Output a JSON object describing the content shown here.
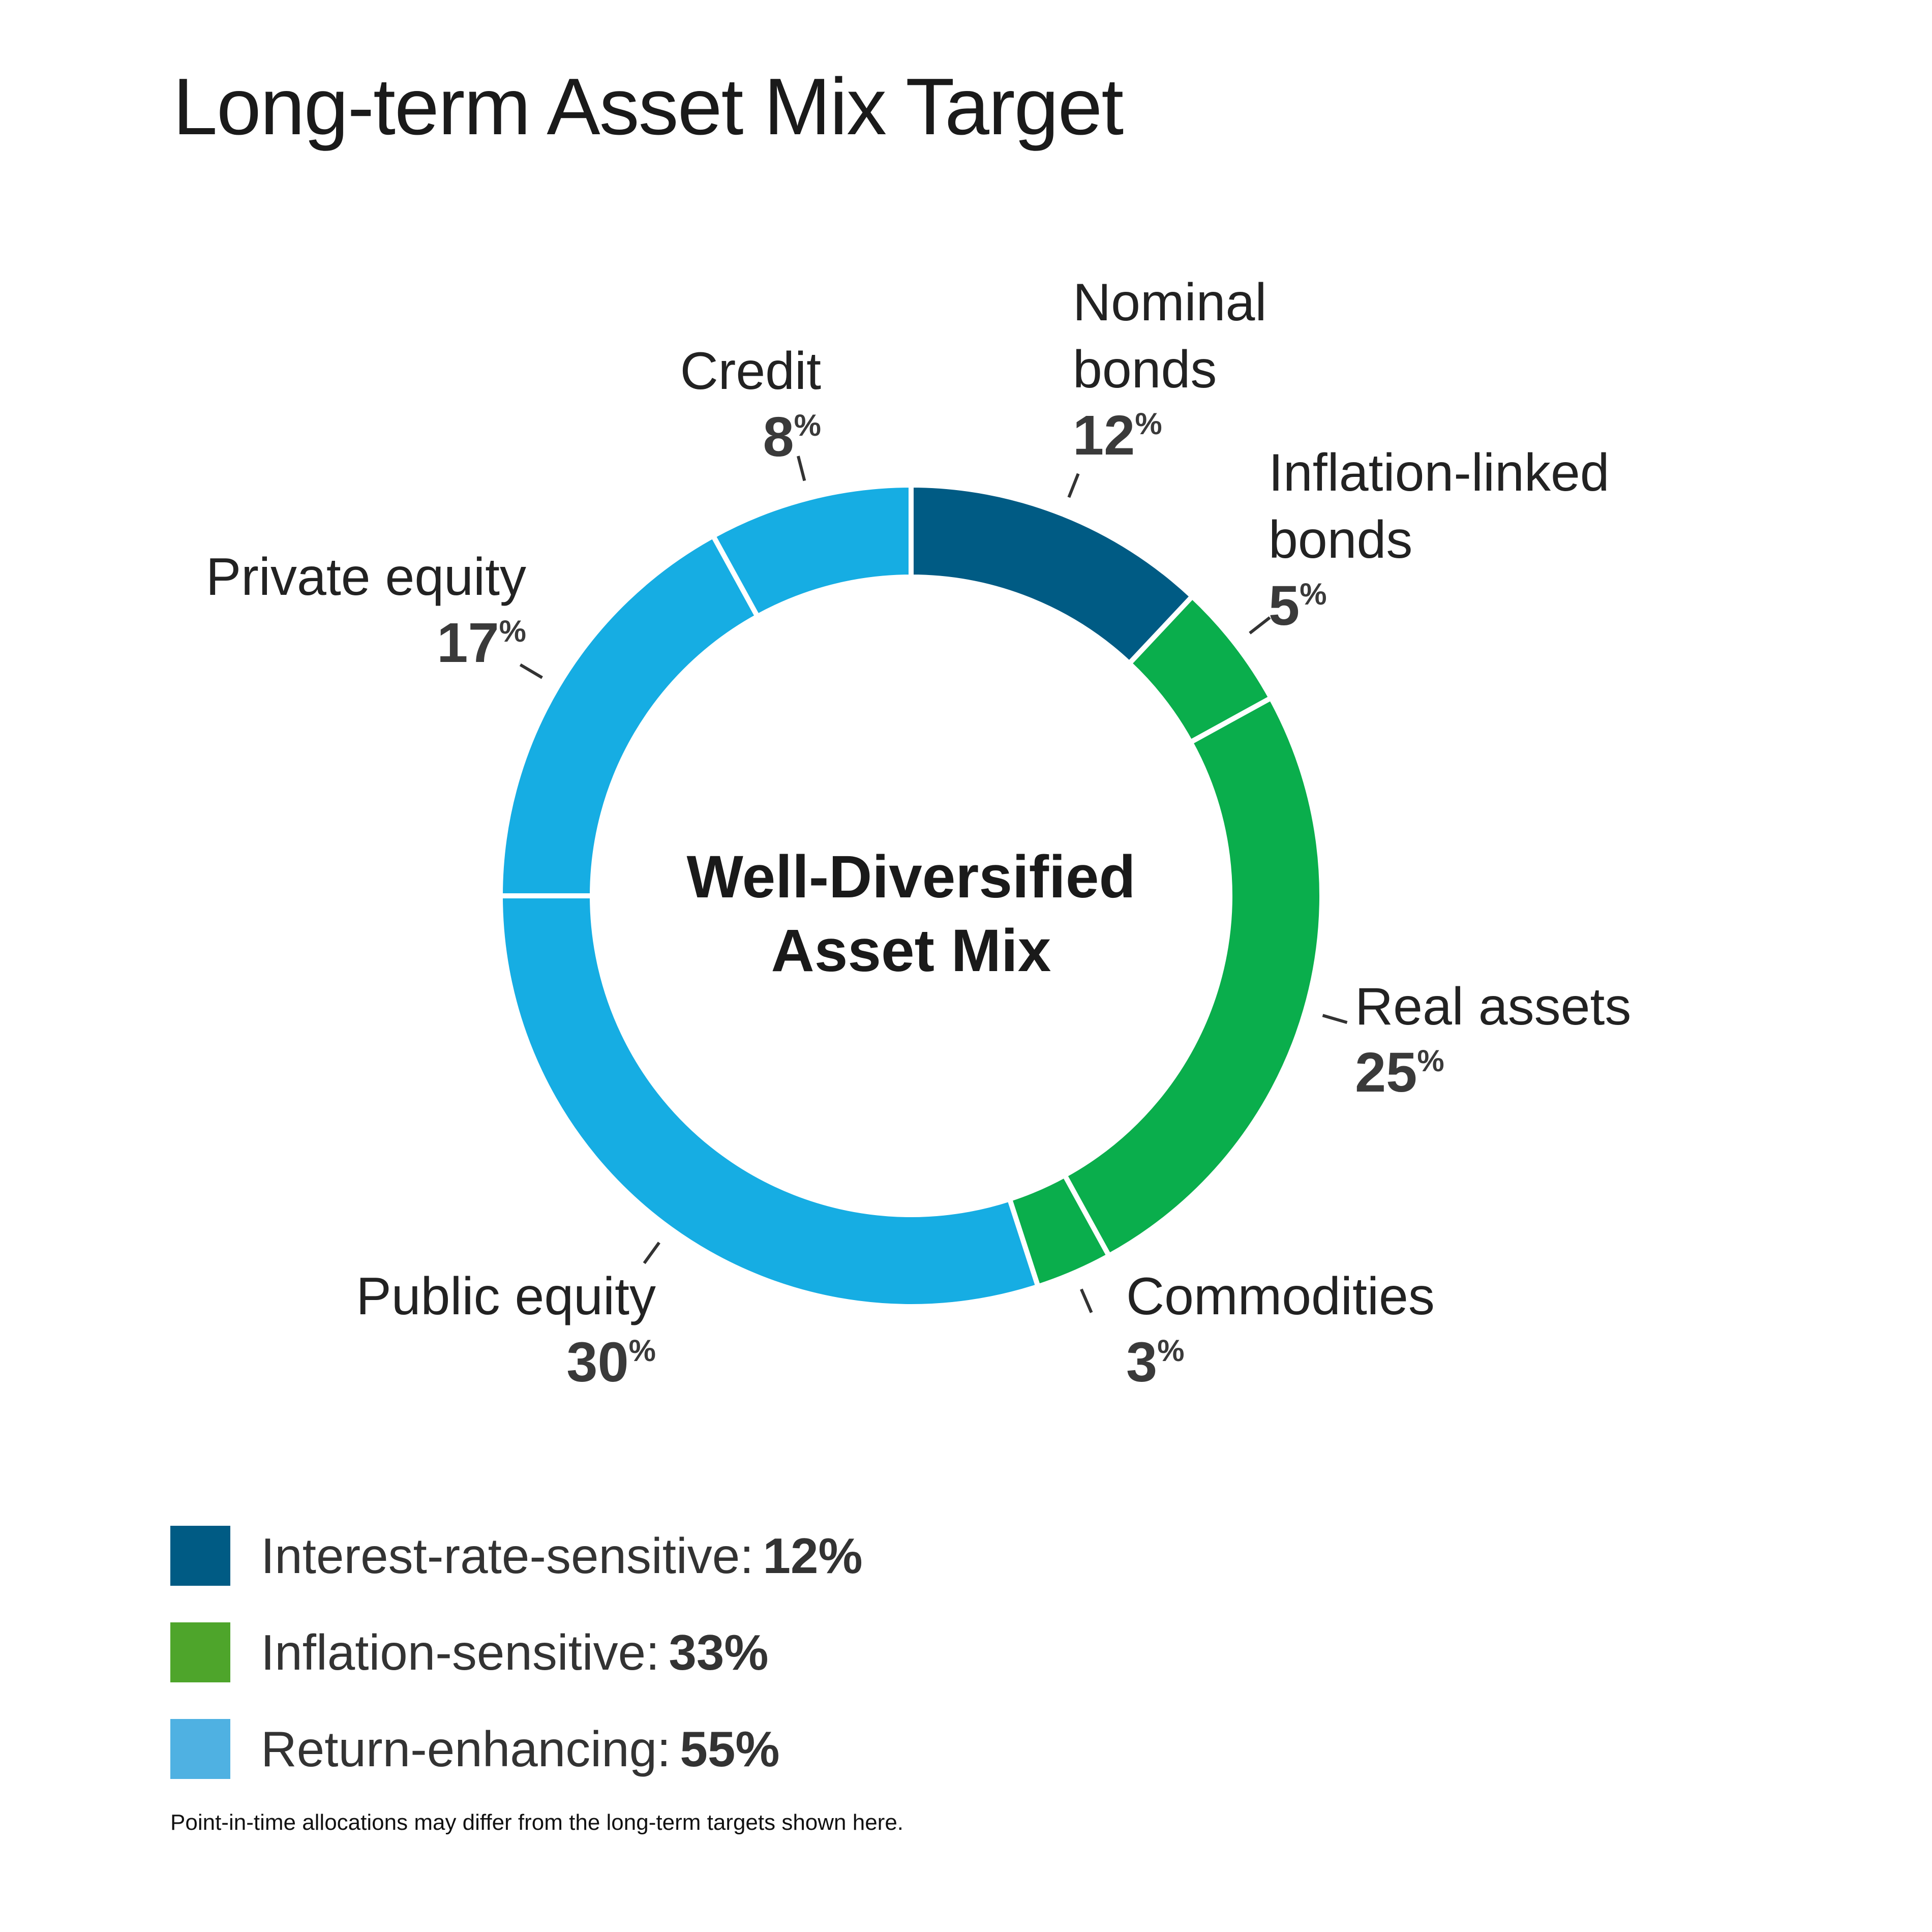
{
  "title": "Long-term Asset Mix Target",
  "chart_data": {
    "type": "pie",
    "donut": true,
    "center_label": [
      "Well-Diversified",
      "Asset Mix"
    ],
    "slices": [
      {
        "label": [
          "Nominal",
          "bonds"
        ],
        "value": 12,
        "category": "interest",
        "color": "#005b84"
      },
      {
        "label": [
          "Inflation-linked",
          "bonds"
        ],
        "value": 5,
        "category": "inflation",
        "color": "#0aae4c"
      },
      {
        "label": [
          "Real assets"
        ],
        "value": 25,
        "category": "inflation",
        "color": "#0aae4c"
      },
      {
        "label": [
          "Commodities"
        ],
        "value": 3,
        "category": "inflation",
        "color": "#0aae4c"
      },
      {
        "label": [
          "Public equity"
        ],
        "value": 30,
        "category": "return",
        "color": "#16ade3"
      },
      {
        "label": [
          "Private equity"
        ],
        "value": 17,
        "category": "return",
        "color": "#16ade3"
      },
      {
        "label": [
          "Credit"
        ],
        "value": 8,
        "category": "return",
        "color": "#16ade3"
      }
    ],
    "value_suffix": "%"
  },
  "legend": [
    {
      "label": "Interest-rate-sensitive:",
      "value": "12%",
      "color": "#005b84"
    },
    {
      "label": "Inflation-sensitive:",
      "value": "33%",
      "color": "#4ea52b"
    },
    {
      "label": "Return-enhancing:",
      "value": "55%",
      "color": "#4fb1e2"
    }
  ],
  "footnote": "Point-in-time allocations may differ from the long-term targets shown here."
}
